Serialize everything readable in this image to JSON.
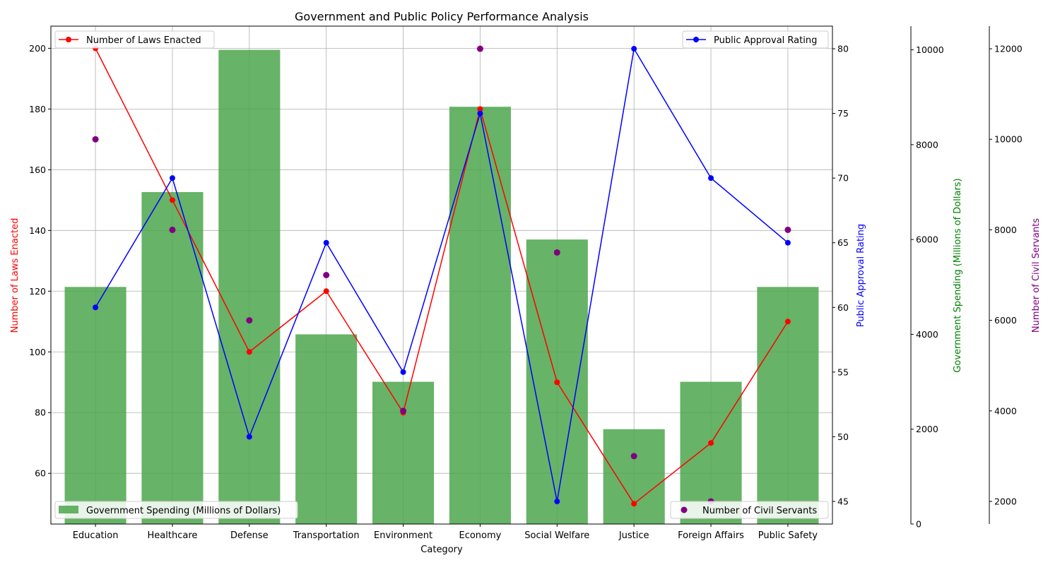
{
  "chart_data": {
    "type": "bar",
    "title": "Government and Public Policy Performance Analysis",
    "xlabel": "Category",
    "categories": [
      "Education",
      "Healthcare",
      "Defense",
      "Transportation",
      "Environment",
      "Economy",
      "Social Welfare",
      "Justice",
      "Foreign Affairs",
      "Public Safety"
    ],
    "grid": true,
    "series": [
      {
        "name": "Government Spending (Millions of Dollars)",
        "type": "bar",
        "axis": "Government Spending (Millions of Dollars)",
        "color": "#4CA64C",
        "values": [
          5000,
          7000,
          10000,
          4000,
          3000,
          8800,
          6000,
          2000,
          3000,
          5000
        ]
      },
      {
        "name": "Number of Laws Enacted",
        "type": "line",
        "axis": "Number of Laws Enacted",
        "color": "#ff0000",
        "values": [
          200,
          150,
          100,
          120,
          80,
          180,
          90,
          50,
          70,
          110
        ]
      },
      {
        "name": "Public Approval Rating",
        "type": "line",
        "axis": "Public Approval Rating",
        "color": "#0000ff",
        "values": [
          60,
          70,
          50,
          65,
          55,
          75,
          45,
          80,
          70,
          65
        ]
      },
      {
        "name": "Number of Civil Servants",
        "type": "scatter",
        "axis": "Number of Civil Servants",
        "color": "#800080",
        "values": [
          10000,
          8000,
          6000,
          7000,
          4000,
          12000,
          7500,
          3000,
          2000,
          8000
        ]
      }
    ],
    "axes": {
      "laws": {
        "label": "Number of Laws Enacted",
        "color": "#ff0000",
        "range": [
          43.3,
          207.3
        ],
        "ticks": [
          60,
          80,
          100,
          120,
          140,
          160,
          180,
          200
        ]
      },
      "approval": {
        "label": "Public Approval Rating",
        "color": "#0000ff",
        "range": [
          43.25,
          81.75
        ],
        "ticks": [
          45,
          50,
          55,
          60,
          65,
          70,
          75,
          80
        ]
      },
      "spending": {
        "label": "Government Spending (Millions of Dollars)",
        "color": "#008000",
        "range": [
          0,
          10500
        ],
        "ticks": [
          0,
          2000,
          4000,
          6000,
          8000,
          10000
        ]
      },
      "servants": {
        "label": "Number of Civil Servants",
        "color": "#800080",
        "range": [
          1500,
          12500
        ],
        "ticks": [
          2000,
          4000,
          6000,
          8000,
          10000,
          12000
        ]
      }
    },
    "legends": {
      "laws": {
        "label": "Number of Laws Enacted",
        "position": "upper-left"
      },
      "approval": {
        "label": "Public Approval Rating",
        "position": "upper-right"
      },
      "spending": {
        "label": "Government Spending (Millions of Dollars)",
        "position": "lower-left"
      },
      "servants": {
        "label": "Number of Civil Servants",
        "position": "lower-right"
      }
    }
  }
}
